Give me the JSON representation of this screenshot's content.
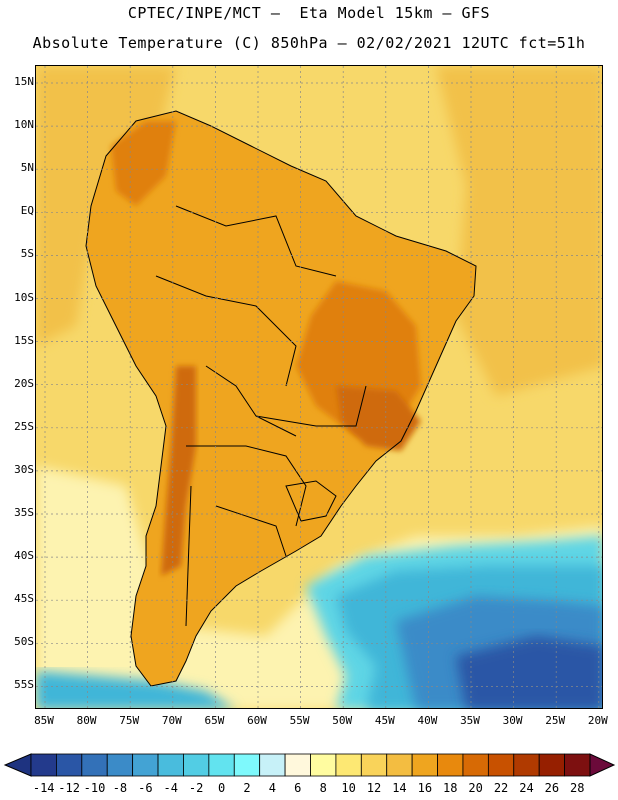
{
  "header": {
    "line1": "CPTEC/INPE/MCT –  Eta Model 15km – GFS",
    "line2": "Absolute Temperature (C) 850hPa – 02/02/2021 12UTC fct=51h"
  },
  "axes": {
    "lat_labels": [
      "15N",
      "10N",
      "5N",
      "EQ",
      "5S",
      "10S",
      "15S",
      "20S",
      "25S",
      "30S",
      "35S",
      "40S",
      "45S",
      "50S",
      "55S"
    ],
    "lon_labels": [
      "85W",
      "80W",
      "75W",
      "70W",
      "65W",
      "60W",
      "55W",
      "50W",
      "45W",
      "40W",
      "35W",
      "30W",
      "25W",
      "20W"
    ]
  },
  "colorbar": {
    "labels": [
      "-14",
      "-12",
      "-10",
      "-8",
      "-6",
      "-4",
      "-2",
      "0",
      "2",
      "4",
      "6",
      "8",
      "10",
      "12",
      "14",
      "16",
      "18",
      "20",
      "22",
      "24",
      "26",
      "28"
    ],
    "colors": [
      "#233a8c",
      "#2a56a6",
      "#3371b8",
      "#3b8bc8",
      "#43a3d4",
      "#49bcdd",
      "#52cde4",
      "#62e3ef",
      "#7ef9fc",
      "#c7f1f8",
      "#fff8dc",
      "#fffca0",
      "#fde873",
      "#f9d35a",
      "#f3bd41",
      "#efa51f",
      "#e8890d",
      "#d76a05",
      "#c85100",
      "#b03a00",
      "#961f00",
      "#7d1010"
    ],
    "under_color": "#1e3380",
    "over_color": "#6b0a3a"
  },
  "map": {
    "ocean_warm": "#f2c14a",
    "ocean_mid": "#f7d86a",
    "land_base": "#efa51f",
    "land_hot": "#e0800f",
    "land_hotter": "#cf6a0c",
    "cool_band": "#fdf3b0",
    "cold_a": "#5fd5e5",
    "cold_b": "#3fb6d8",
    "cold_c": "#3b8bc8",
    "cold_d": "#2a56a6",
    "coast": "#000000"
  }
}
